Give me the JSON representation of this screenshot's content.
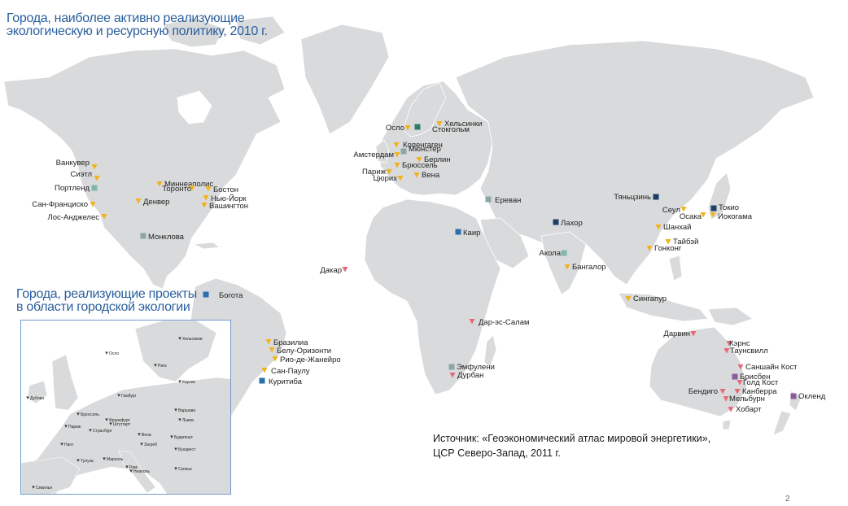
{
  "title": "Города, наиболее активно реализующие экологическую и ресурсную политику, 2010 г.",
  "title_lines": [
    "Города, наиболее активно реализующие",
    "экологическую и ресурсную политику, 2010 г."
  ],
  "inset_title_lines": [
    "Города, реализующие проекты",
    "в области городской экологии"
  ],
  "source_lines": [
    "Источник: «Геоэкономический атлас мировой энергетики»,",
    "ЦСР Северо-Запад, 2011 г."
  ],
  "page_number": "2",
  "colors": {
    "ocean": "#ffffff",
    "land": "#d9dadb",
    "border": "#ffffff",
    "title": "#2a5f9e",
    "yellow": "#f2b21c",
    "pink": "#e86a7a",
    "teal": "#7fb8aa",
    "navy": "#1d3f66",
    "gray_square": "#8aa6a6",
    "purple": "#8a5c9c",
    "green": "#2e7d6b",
    "blue": "#2a6fb0"
  },
  "cities": [
    {
      "name": "Ванкувер",
      "marker": "yellow"
    },
    {
      "name": "Сиэтл",
      "marker": "yellow"
    },
    {
      "name": "Портленд",
      "marker": "teal"
    },
    {
      "name": "Сан-Франциско",
      "marker": "yellow"
    },
    {
      "name": "Лос-Анджелес",
      "marker": "yellow"
    },
    {
      "name": "Миннеаполис",
      "marker": "yellow"
    },
    {
      "name": "Торонто",
      "marker": "yellow"
    },
    {
      "name": "Бостон",
      "marker": "yellow"
    },
    {
      "name": "Денвер",
      "marker": "yellow"
    },
    {
      "name": "Нью-Йорк",
      "marker": "yellow"
    },
    {
      "name": "Вашингтон",
      "marker": "yellow"
    },
    {
      "name": "Монклова",
      "marker": "gray_square"
    },
    {
      "name": "Богота",
      "marker": "blue"
    },
    {
      "name": "Бразилиа",
      "marker": "yellow"
    },
    {
      "name": "Белу-Оризонти",
      "marker": "yellow"
    },
    {
      "name": "Рио-де-Жанейро",
      "marker": "yellow"
    },
    {
      "name": "Сан-Паулу",
      "marker": "yellow"
    },
    {
      "name": "Куритиба",
      "marker": "blue"
    },
    {
      "name": "Осло",
      "marker": "yellow"
    },
    {
      "name": "Хельсинки",
      "marker": "yellow"
    },
    {
      "name": "Стокгольм",
      "marker": "green"
    },
    {
      "name": "Копенгаген",
      "marker": "yellow"
    },
    {
      "name": "Амстердам",
      "marker": "yellow"
    },
    {
      "name": "Мюнстер",
      "marker": "gray_square"
    },
    {
      "name": "Берлин",
      "marker": "yellow"
    },
    {
      "name": "Брюссель",
      "marker": "yellow"
    },
    {
      "name": "Париж",
      "marker": "yellow"
    },
    {
      "name": "Цюрих",
      "marker": "yellow"
    },
    {
      "name": "Вена",
      "marker": "yellow"
    },
    {
      "name": "Ереван",
      "marker": "gray_square"
    },
    {
      "name": "Каир",
      "marker": "blue"
    },
    {
      "name": "Дакар",
      "marker": "pink"
    },
    {
      "name": "Лахор",
      "marker": "navy"
    },
    {
      "name": "Акола",
      "marker": "teal"
    },
    {
      "name": "Бангалор",
      "marker": "yellow"
    },
    {
      "name": "Тяньцзинь",
      "marker": "navy"
    },
    {
      "name": "Сеул",
      "marker": "yellow"
    },
    {
      "name": "Токио",
      "marker": "navy"
    },
    {
      "name": "Осака",
      "marker": "yellow"
    },
    {
      "name": "Иокогама",
      "marker": "yellow"
    },
    {
      "name": "Шанхай",
      "marker": "yellow"
    },
    {
      "name": "Тайбэй",
      "marker": "yellow"
    },
    {
      "name": "Гонконг",
      "marker": "yellow"
    },
    {
      "name": "Сингапур",
      "marker": "yellow"
    },
    {
      "name": "Дар-эс-Салам",
      "marker": "pink"
    },
    {
      "name": "Эмфулени",
      "marker": "gray_square"
    },
    {
      "name": "Дурбан",
      "marker": "pink"
    },
    {
      "name": "Дарвин",
      "marker": "pink"
    },
    {
      "name": "Кэрнс",
      "marker": "pink"
    },
    {
      "name": "Таунсвилл",
      "marker": "pink"
    },
    {
      "name": "Саншайн Кост",
      "marker": "pink"
    },
    {
      "name": "Брисбен",
      "marker": "purple"
    },
    {
      "name": "Голд Кост",
      "marker": "pink"
    },
    {
      "name": "Канберра",
      "marker": "pink"
    },
    {
      "name": "Бендиго",
      "marker": "pink"
    },
    {
      "name": "Мельбурн",
      "marker": "pink"
    },
    {
      "name": "Хобарт",
      "marker": "pink"
    },
    {
      "name": "Окленд",
      "marker": "purple"
    }
  ],
  "inset_cities": [
    "Хельсинки",
    "Осло",
    "Рига",
    "Дублин",
    "Каунас",
    "Брюссель",
    "Франкфурт",
    "Штутгарт",
    "Варшава",
    "Париж",
    "Страсбург",
    "Вена",
    "Будапешт",
    "Львов",
    "Нант",
    "Загреб",
    "Бухарест",
    "Тулуза",
    "Марсель",
    "Рим",
    "Неаполь",
    "Скопье",
    "Севилья",
    "Гамбург"
  ]
}
